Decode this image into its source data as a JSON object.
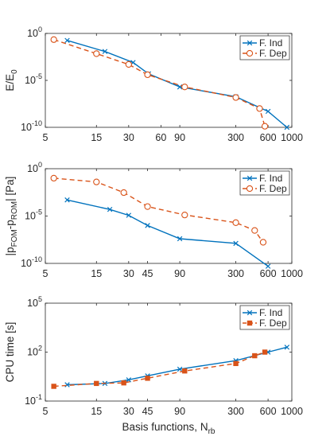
{
  "colors": {
    "ind": "#0072BD",
    "dep": "#D95319",
    "axis": "#262626",
    "legend_border": "#262626"
  },
  "chart_data": [
    {
      "type": "line",
      "title": "",
      "xlabel": "",
      "ylabel": {
        "main": "E/E",
        "sub": "0"
      },
      "xscale": "log",
      "yscale": "log",
      "xlim": [
        5,
        1000
      ],
      "ylim": [
        1e-10,
        1
      ],
      "xticks": [
        5,
        15,
        30,
        60,
        90,
        300,
        600,
        1000
      ],
      "xtick_labels": [
        "5",
        "15",
        "30",
        "60",
        "90",
        "300",
        "600",
        "1000"
      ],
      "yticks": [
        1e-10,
        1e-05,
        1
      ],
      "ytick_labels": [
        {
          "base": "10",
          "exp": "-10"
        },
        {
          "base": "10",
          "exp": "-5"
        },
        {
          "base": "10",
          "exp": "0"
        }
      ],
      "grid": false,
      "legend_position": "top-right",
      "series": [
        {
          "name": "F. Ind",
          "color": "#0072BD",
          "style": "solid",
          "marker": "x",
          "x": [
            8,
            18,
            33,
            46,
            90,
            300,
            600,
            900
          ],
          "y": [
            0.18,
            0.012,
            0.0008,
            5e-05,
            2e-06,
            1.8e-07,
            5e-09,
            1e-10
          ]
        },
        {
          "name": "F. Dep",
          "color": "#D95319",
          "style": "dashed",
          "marker": "o",
          "x": [
            6,
            15,
            30,
            45,
            100,
            300,
            500,
            560
          ],
          "y": [
            0.22,
            0.007,
            0.0005,
            4e-05,
            2e-06,
            1.5e-07,
            1e-08,
            1.3e-10
          ]
        }
      ]
    },
    {
      "type": "line",
      "title": "",
      "xlabel": "",
      "ylabel": {
        "p1": "|p",
        "s1": "FOM",
        "p2": "-p",
        "s2": "ROM",
        "p3": "| [Pa]"
      },
      "xscale": "log",
      "yscale": "log",
      "xlim": [
        5,
        1000
      ],
      "ylim": [
        1e-10,
        1
      ],
      "xticks": [
        5,
        15,
        30,
        45,
        90,
        300,
        600,
        1000
      ],
      "xtick_labels": [
        "5",
        "15",
        "30",
        "45",
        "90",
        "300",
        "600",
        "1000"
      ],
      "yticks": [
        1e-10,
        1e-05,
        1
      ],
      "ytick_labels": [
        {
          "base": "10",
          "exp": "-10"
        },
        {
          "base": "10",
          "exp": "-5"
        },
        {
          "base": "10",
          "exp": "0"
        }
      ],
      "grid": false,
      "legend_position": "top-right",
      "series": [
        {
          "name": "F. Ind",
          "color": "#0072BD",
          "style": "solid",
          "marker": "x",
          "x": [
            8,
            20,
            30,
            45,
            90,
            300,
            600
          ],
          "y": [
            0.0005,
            5e-05,
            1.2e-05,
            1e-06,
            4e-08,
            1.3e-08,
            5e-11
          ]
        },
        {
          "name": "F. Dep",
          "color": "#D95319",
          "style": "dashed",
          "marker": "o",
          "x": [
            6,
            15,
            27,
            45,
            100,
            300,
            450,
            540
          ],
          "y": [
            0.1,
            0.04,
            0.003,
            0.0001,
            1.3e-05,
            2e-06,
            3e-07,
            1.7e-08
          ]
        }
      ]
    },
    {
      "type": "line",
      "title": "",
      "xlabel": {
        "main": "Basis functions, N",
        "sub": "rb"
      },
      "ylabel": {
        "main": "CPU time [s]"
      },
      "xscale": "log",
      "yscale": "log",
      "xlim": [
        5,
        1000
      ],
      "ylim": [
        0.1,
        100000
      ],
      "xticks": [
        5,
        15,
        30,
        45,
        90,
        300,
        600,
        1000
      ],
      "xtick_labels": [
        "5",
        "15",
        "30",
        "45",
        "90",
        "300",
        "600",
        "1000"
      ],
      "yticks": [
        0.1,
        100,
        100000
      ],
      "ytick_labels": [
        {
          "base": "10",
          "exp": "-1"
        },
        {
          "base": "10",
          "exp": "2"
        },
        {
          "base": "10",
          "exp": "5"
        }
      ],
      "grid": false,
      "legend_position": "top-right",
      "series": [
        {
          "name": "F. Ind",
          "color": "#0072BD",
          "style": "solid",
          "marker": "x",
          "x": [
            8,
            18,
            30,
            45,
            90,
            300,
            600,
            900
          ],
          "y": [
            1,
            1.2,
            2,
            3.5,
            9,
            30,
            100,
            200
          ]
        },
        {
          "name": "F. Dep",
          "color": "#D95319",
          "style": "dashed",
          "marker": "s",
          "x": [
            6,
            15,
            27,
            45,
            100,
            300,
            450,
            560
          ],
          "y": [
            0.8,
            1.2,
            1.3,
            2.5,
            7,
            20,
            60,
            100
          ]
        }
      ]
    }
  ]
}
